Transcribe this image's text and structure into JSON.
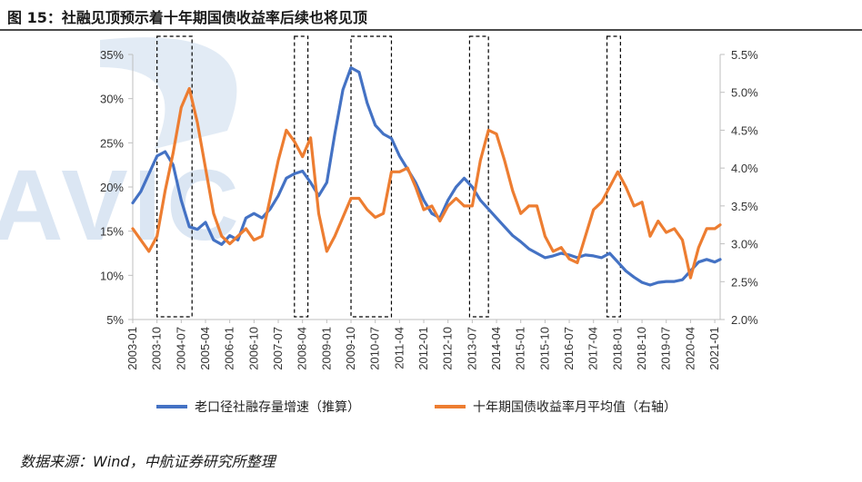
{
  "figure_title": "图 15：社融见顶预示着十年期国债收益率后续也将见顶",
  "source_text": "数据来源：Wind，中航证券研究所整理",
  "watermark_text": "AVIC",
  "colors": {
    "series1": "#4472c4",
    "series2": "#ed7d31",
    "axis": "#bfbfbf",
    "box": "#000000",
    "watermark": "#dbe6f3"
  },
  "chart_data": {
    "type": "line",
    "title": "",
    "xlabel": "",
    "ylabel": "",
    "x_start": "2003-01",
    "x_end": "2021-03",
    "x_tick_labels": [
      "2003-01",
      "2003-10",
      "2004-07",
      "2005-04",
      "2006-01",
      "2006-10",
      "2007-07",
      "2008-04",
      "2009-01",
      "2009-10",
      "2010-07",
      "2011-04",
      "2012-01",
      "2012-10",
      "2013-07",
      "2014-04",
      "2015-01",
      "2015-10",
      "2016-07",
      "2017-04",
      "2018-01",
      "2018-10",
      "2019-07",
      "2020-04",
      "2021-01"
    ],
    "left_axis": {
      "ylim": [
        5,
        35
      ],
      "ticks": [
        "5%",
        "10%",
        "15%",
        "20%",
        "25%",
        "30%",
        "35%"
      ]
    },
    "right_axis": {
      "ylim": [
        2.0,
        5.5
      ],
      "ticks": [
        "2.0%",
        "2.5%",
        "3.0%",
        "3.5%",
        "4.0%",
        "4.5%",
        "5.0%",
        "5.5%"
      ]
    },
    "highlight_ranges": [
      [
        "2003-10",
        "2004-11"
      ],
      [
        "2008-01",
        "2008-06"
      ],
      [
        "2009-10",
        "2011-01"
      ],
      [
        "2013-06",
        "2014-01"
      ],
      [
        "2017-09",
        "2018-02"
      ]
    ],
    "series": [
      {
        "name": "老口径社融存量增速（推算）",
        "axis": "left",
        "color": "#4472c4",
        "points": [
          [
            "2003-01",
            18.2
          ],
          [
            "2003-04",
            19.5
          ],
          [
            "2003-07",
            21.5
          ],
          [
            "2003-10",
            23.5
          ],
          [
            "2004-01",
            24.0
          ],
          [
            "2004-04",
            22.5
          ],
          [
            "2004-07",
            18.5
          ],
          [
            "2004-10",
            15.5
          ],
          [
            "2005-01",
            15.2
          ],
          [
            "2005-04",
            16.0
          ],
          [
            "2005-07",
            14.0
          ],
          [
            "2005-10",
            13.5
          ],
          [
            "2006-01",
            14.5
          ],
          [
            "2006-04",
            14.0
          ],
          [
            "2006-07",
            16.5
          ],
          [
            "2006-10",
            17.0
          ],
          [
            "2007-01",
            16.5
          ],
          [
            "2007-04",
            17.5
          ],
          [
            "2007-07",
            19.0
          ],
          [
            "2007-10",
            21.0
          ],
          [
            "2008-01",
            21.5
          ],
          [
            "2008-04",
            21.8
          ],
          [
            "2008-07",
            20.5
          ],
          [
            "2008-10",
            19.0
          ],
          [
            "2009-01",
            20.5
          ],
          [
            "2009-04",
            26.0
          ],
          [
            "2009-07",
            31.0
          ],
          [
            "2009-10",
            33.5
          ],
          [
            "2010-01",
            33.0
          ],
          [
            "2010-04",
            29.5
          ],
          [
            "2010-07",
            27.0
          ],
          [
            "2010-10",
            26.0
          ],
          [
            "2011-01",
            25.5
          ],
          [
            "2011-04",
            23.5
          ],
          [
            "2011-07",
            22.0
          ],
          [
            "2011-10",
            20.5
          ],
          [
            "2012-01",
            18.5
          ],
          [
            "2012-04",
            17.0
          ],
          [
            "2012-07",
            16.5
          ],
          [
            "2012-10",
            18.5
          ],
          [
            "2013-01",
            20.0
          ],
          [
            "2013-04",
            21.0
          ],
          [
            "2013-07",
            20.0
          ],
          [
            "2013-10",
            18.5
          ],
          [
            "2014-01",
            17.5
          ],
          [
            "2014-04",
            16.5
          ],
          [
            "2014-07",
            15.5
          ],
          [
            "2014-10",
            14.5
          ],
          [
            "2015-01",
            13.8
          ],
          [
            "2015-04",
            13.0
          ],
          [
            "2015-07",
            12.5
          ],
          [
            "2015-10",
            12.0
          ],
          [
            "2016-01",
            12.2
          ],
          [
            "2016-04",
            12.5
          ],
          [
            "2016-07",
            12.3
          ],
          [
            "2016-10",
            12.0
          ],
          [
            "2017-01",
            12.3
          ],
          [
            "2017-04",
            12.2
          ],
          [
            "2017-07",
            12.0
          ],
          [
            "2017-10",
            12.5
          ],
          [
            "2018-01",
            11.5
          ],
          [
            "2018-04",
            10.5
          ],
          [
            "2018-07",
            9.8
          ],
          [
            "2018-10",
            9.2
          ],
          [
            "2019-01",
            8.9
          ],
          [
            "2019-04",
            9.2
          ],
          [
            "2019-07",
            9.3
          ],
          [
            "2019-10",
            9.3
          ],
          [
            "2020-01",
            9.5
          ],
          [
            "2020-04",
            10.5
          ],
          [
            "2020-07",
            11.5
          ],
          [
            "2020-10",
            11.8
          ],
          [
            "2021-01",
            11.5
          ],
          [
            "2021-03",
            11.8
          ]
        ]
      },
      {
        "name": "十年期国债收益率月平均值（右轴）",
        "axis": "right",
        "color": "#ed7d31",
        "points": [
          [
            "2003-01",
            3.2
          ],
          [
            "2003-04",
            3.05
          ],
          [
            "2003-07",
            2.9
          ],
          [
            "2003-10",
            3.1
          ],
          [
            "2004-01",
            3.7
          ],
          [
            "2004-04",
            4.2
          ],
          [
            "2004-07",
            4.8
          ],
          [
            "2004-10",
            5.05
          ],
          [
            "2005-01",
            4.6
          ],
          [
            "2005-04",
            4.0
          ],
          [
            "2005-07",
            3.4
          ],
          [
            "2005-10",
            3.1
          ],
          [
            "2006-01",
            3.0
          ],
          [
            "2006-04",
            3.1
          ],
          [
            "2006-07",
            3.2
          ],
          [
            "2006-10",
            3.05
          ],
          [
            "2007-01",
            3.1
          ],
          [
            "2007-04",
            3.6
          ],
          [
            "2007-07",
            4.1
          ],
          [
            "2007-10",
            4.5
          ],
          [
            "2008-01",
            4.35
          ],
          [
            "2008-04",
            4.15
          ],
          [
            "2008-07",
            4.4
          ],
          [
            "2008-10",
            3.4
          ],
          [
            "2009-01",
            2.9
          ],
          [
            "2009-04",
            3.1
          ],
          [
            "2009-07",
            3.35
          ],
          [
            "2009-10",
            3.6
          ],
          [
            "2010-01",
            3.6
          ],
          [
            "2010-04",
            3.45
          ],
          [
            "2010-07",
            3.35
          ],
          [
            "2010-10",
            3.4
          ],
          [
            "2011-01",
            3.95
          ],
          [
            "2011-04",
            3.95
          ],
          [
            "2011-07",
            4.0
          ],
          [
            "2011-10",
            3.75
          ],
          [
            "2012-01",
            3.45
          ],
          [
            "2012-04",
            3.5
          ],
          [
            "2012-07",
            3.3
          ],
          [
            "2012-10",
            3.5
          ],
          [
            "2013-01",
            3.6
          ],
          [
            "2013-04",
            3.5
          ],
          [
            "2013-07",
            3.5
          ],
          [
            "2013-10",
            4.1
          ],
          [
            "2014-01",
            4.5
          ],
          [
            "2014-04",
            4.45
          ],
          [
            "2014-07",
            4.1
          ],
          [
            "2014-10",
            3.7
          ],
          [
            "2015-01",
            3.4
          ],
          [
            "2015-04",
            3.5
          ],
          [
            "2015-07",
            3.5
          ],
          [
            "2015-10",
            3.1
          ],
          [
            "2016-01",
            2.9
          ],
          [
            "2016-04",
            2.95
          ],
          [
            "2016-07",
            2.8
          ],
          [
            "2016-10",
            2.75
          ],
          [
            "2017-01",
            3.1
          ],
          [
            "2017-04",
            3.45
          ],
          [
            "2017-07",
            3.55
          ],
          [
            "2017-10",
            3.75
          ],
          [
            "2018-01",
            3.95
          ],
          [
            "2018-04",
            3.75
          ],
          [
            "2018-07",
            3.5
          ],
          [
            "2018-10",
            3.55
          ],
          [
            "2019-01",
            3.1
          ],
          [
            "2019-04",
            3.3
          ],
          [
            "2019-07",
            3.15
          ],
          [
            "2019-10",
            3.2
          ],
          [
            "2020-01",
            3.05
          ],
          [
            "2020-04",
            2.55
          ],
          [
            "2020-07",
            2.95
          ],
          [
            "2020-10",
            3.2
          ],
          [
            "2021-01",
            3.2
          ],
          [
            "2021-03",
            3.25
          ]
        ]
      }
    ],
    "legend_position": "bottom"
  }
}
